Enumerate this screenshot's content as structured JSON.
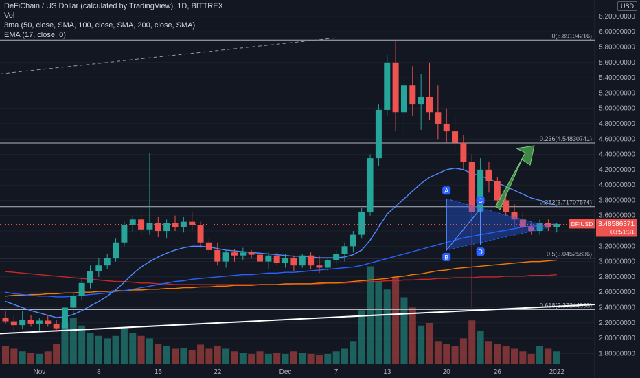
{
  "legend": {
    "title": "DeFiChain / US Dollar (calculated by TradingView), 1D, BITTREX",
    "vol": "Vol",
    "ma": "3ma (50, close, SMA, 100, close, SMA, 200, close, SMA)",
    "ema": "EMA (17, close, 0)"
  },
  "currency": "USD",
  "colors": {
    "bg": "#131722",
    "up": "#26a69a",
    "down": "#ef5350",
    "ema": "#2962ff",
    "ma100": "#f57c00",
    "ma200": "#c62828",
    "trend": "#ffffff",
    "pattern": "#2962ff",
    "arrow": "#4caf50",
    "price": "#ef5350"
  },
  "price_tag": {
    "symbol": "DFIUSD",
    "value": "3.48586371",
    "countdown": "03:51:31"
  },
  "fib_levels": [
    {
      "label": "0(5.89194216)",
      "value": 5.89194216
    },
    {
      "label": "0.236(4.54830741)",
      "value": 4.54830741
    },
    {
      "label": "0.382(3.71707574)",
      "value": 3.71707574
    },
    {
      "label": "0.5(3.04525836)",
      "value": 3.04525836
    },
    {
      "label": "0.618(2.37344098)",
      "value": 2.37344098
    }
  ],
  "pattern_points": [
    {
      "label": "A",
      "date": "2021-12-18",
      "value": 3.82
    },
    {
      "label": "B",
      "date": "2021-12-18",
      "value": 3.15
    },
    {
      "label": "C",
      "date": "2021-12-24",
      "value": 3.69
    },
    {
      "label": "D",
      "date": "2021-12-24",
      "value": 3.2
    }
  ],
  "chart_data": {
    "type": "candlestick",
    "y_axis": {
      "min": 1.66,
      "max": 6.28,
      "ticks": [
        "6.20000000",
        "6.00000000",
        "5.80000000",
        "5.60000000",
        "5.40000000",
        "5.20000000",
        "5.00000000",
        "4.80000000",
        "4.60000000",
        "4.40000000",
        "4.20000000",
        "4.00000000",
        "3.80000000",
        "3.60000000",
        "3.40000000",
        "3.20000000",
        "3.00000000",
        "2.80000000",
        "2.60000000",
        "2.40000000",
        "2.20000000",
        "2.00000000",
        "1.80000000"
      ]
    },
    "x_axis": {
      "labels": [
        "Nov",
        "8",
        "15",
        "22",
        "Dec",
        "7",
        "13",
        "20",
        "26",
        "2022"
      ]
    },
    "candles": [
      {
        "o": 2.27,
        "h": 2.35,
        "l": 2.18,
        "c": 2.22,
        "v": 0.35
      },
      {
        "o": 2.22,
        "h": 2.3,
        "l": 2.1,
        "c": 2.17,
        "v": 0.3
      },
      {
        "o": 2.17,
        "h": 2.35,
        "l": 2.12,
        "c": 2.24,
        "v": 0.25
      },
      {
        "o": 2.24,
        "h": 2.3,
        "l": 2.15,
        "c": 2.19,
        "v": 0.22
      },
      {
        "o": 2.19,
        "h": 2.26,
        "l": 2.1,
        "c": 2.23,
        "v": 0.2
      },
      {
        "o": 2.23,
        "h": 2.3,
        "l": 2.15,
        "c": 2.18,
        "v": 0.25
      },
      {
        "o": 2.18,
        "h": 2.24,
        "l": 2.08,
        "c": 2.13,
        "v": 0.4
      },
      {
        "o": 2.13,
        "h": 2.45,
        "l": 2.1,
        "c": 2.4,
        "v": 0.8
      },
      {
        "o": 2.4,
        "h": 2.6,
        "l": 2.3,
        "c": 2.55,
        "v": 0.9
      },
      {
        "o": 2.55,
        "h": 2.78,
        "l": 2.5,
        "c": 2.72,
        "v": 0.75
      },
      {
        "o": 2.72,
        "h": 2.95,
        "l": 2.65,
        "c": 2.88,
        "v": 0.6
      },
      {
        "o": 2.88,
        "h": 3.05,
        "l": 2.8,
        "c": 2.95,
        "v": 0.55
      },
      {
        "o": 2.95,
        "h": 3.1,
        "l": 2.9,
        "c": 3.05,
        "v": 0.5
      },
      {
        "o": 3.05,
        "h": 3.3,
        "l": 3.0,
        "c": 3.25,
        "v": 0.55
      },
      {
        "o": 3.25,
        "h": 3.52,
        "l": 3.2,
        "c": 3.48,
        "v": 0.7
      },
      {
        "o": 3.48,
        "h": 3.6,
        "l": 3.38,
        "c": 3.55,
        "v": 0.6
      },
      {
        "o": 3.55,
        "h": 3.62,
        "l": 3.35,
        "c": 3.42,
        "v": 0.55
      },
      {
        "o": 3.42,
        "h": 4.42,
        "l": 3.35,
        "c": 3.5,
        "v": 0.5
      },
      {
        "o": 3.5,
        "h": 3.58,
        "l": 3.32,
        "c": 3.4,
        "v": 0.4
      },
      {
        "o": 3.4,
        "h": 3.55,
        "l": 3.3,
        "c": 3.5,
        "v": 0.35
      },
      {
        "o": 3.5,
        "h": 3.6,
        "l": 3.4,
        "c": 3.45,
        "v": 0.3
      },
      {
        "o": 3.45,
        "h": 3.58,
        "l": 3.38,
        "c": 3.52,
        "v": 0.32
      },
      {
        "o": 3.52,
        "h": 3.65,
        "l": 3.42,
        "c": 3.48,
        "v": 0.28
      },
      {
        "o": 3.48,
        "h": 3.52,
        "l": 3.18,
        "c": 3.25,
        "v": 0.38
      },
      {
        "o": 3.25,
        "h": 3.3,
        "l": 3.1,
        "c": 3.15,
        "v": 0.3
      },
      {
        "o": 3.15,
        "h": 3.25,
        "l": 2.95,
        "c": 3.0,
        "v": 0.35
      },
      {
        "o": 3.0,
        "h": 3.15,
        "l": 2.92,
        "c": 3.12,
        "v": 0.3
      },
      {
        "o": 3.12,
        "h": 3.16,
        "l": 3.0,
        "c": 3.08,
        "v": 0.25
      },
      {
        "o": 3.08,
        "h": 3.18,
        "l": 3.02,
        "c": 3.12,
        "v": 0.22
      },
      {
        "o": 3.12,
        "h": 3.15,
        "l": 3.05,
        "c": 3.09,
        "v": 0.2
      },
      {
        "o": 3.09,
        "h": 3.15,
        "l": 2.95,
        "c": 3.0,
        "v": 0.25
      },
      {
        "o": 3.0,
        "h": 3.12,
        "l": 2.9,
        "c": 3.08,
        "v": 0.2
      },
      {
        "o": 3.08,
        "h": 3.12,
        "l": 2.95,
        "c": 2.98,
        "v": 0.22
      },
      {
        "o": 2.98,
        "h": 3.1,
        "l": 2.92,
        "c": 3.05,
        "v": 0.2
      },
      {
        "o": 3.05,
        "h": 3.08,
        "l": 2.88,
        "c": 2.95,
        "v": 0.25
      },
      {
        "o": 2.95,
        "h": 3.1,
        "l": 2.92,
        "c": 3.08,
        "v": 0.22
      },
      {
        "o": 3.08,
        "h": 3.12,
        "l": 2.9,
        "c": 2.95,
        "v": 0.2
      },
      {
        "o": 2.95,
        "h": 3.08,
        "l": 2.85,
        "c": 2.92,
        "v": 0.18
      },
      {
        "o": 2.92,
        "h": 3.05,
        "l": 2.88,
        "c": 3.02,
        "v": 0.2
      },
      {
        "o": 3.02,
        "h": 3.15,
        "l": 2.95,
        "c": 3.1,
        "v": 0.25
      },
      {
        "o": 3.1,
        "h": 3.25,
        "l": 3.0,
        "c": 3.2,
        "v": 0.3
      },
      {
        "o": 3.2,
        "h": 3.4,
        "l": 3.12,
        "c": 3.35,
        "v": 0.45
      },
      {
        "o": 3.35,
        "h": 3.7,
        "l": 3.3,
        "c": 3.65,
        "v": 1.05
      },
      {
        "o": 3.65,
        "h": 4.4,
        "l": 3.6,
        "c": 4.35,
        "v": 1.9
      },
      {
        "o": 4.35,
        "h": 5.05,
        "l": 4.25,
        "c": 4.98,
        "v": 1.6
      },
      {
        "o": 4.98,
        "h": 5.7,
        "l": 4.9,
        "c": 5.6,
        "v": 1.45
      },
      {
        "o": 5.6,
        "h": 5.9,
        "l": 4.7,
        "c": 4.95,
        "v": 1.7
      },
      {
        "o": 4.95,
        "h": 5.4,
        "l": 4.6,
        "c": 5.3,
        "v": 1.3
      },
      {
        "o": 5.3,
        "h": 5.55,
        "l": 4.9,
        "c": 5.05,
        "v": 1.1
      },
      {
        "o": 5.05,
        "h": 5.45,
        "l": 4.72,
        "c": 5.15,
        "v": 0.75
      },
      {
        "o": 5.15,
        "h": 5.6,
        "l": 4.85,
        "c": 4.95,
        "v": 0.8
      },
      {
        "o": 4.95,
        "h": 5.3,
        "l": 4.6,
        "c": 4.8,
        "v": 0.45
      },
      {
        "o": 4.8,
        "h": 5.0,
        "l": 4.55,
        "c": 4.7,
        "v": 0.4
      },
      {
        "o": 4.7,
        "h": 4.9,
        "l": 4.45,
        "c": 4.55,
        "v": 0.35
      },
      {
        "o": 4.55,
        "h": 4.65,
        "l": 4.2,
        "c": 4.3,
        "v": 0.5
      },
      {
        "o": 4.3,
        "h": 4.4,
        "l": 2.4,
        "c": 3.65,
        "v": 0.85
      },
      {
        "o": 3.65,
        "h": 4.35,
        "l": 3.6,
        "c": 4.2,
        "v": 0.65
      },
      {
        "o": 4.2,
        "h": 4.3,
        "l": 3.9,
        "c": 4.05,
        "v": 0.45
      },
      {
        "o": 4.05,
        "h": 4.1,
        "l": 3.7,
        "c": 3.8,
        "v": 0.4
      },
      {
        "o": 3.8,
        "h": 3.9,
        "l": 3.6,
        "c": 3.65,
        "v": 0.35
      },
      {
        "o": 3.65,
        "h": 3.75,
        "l": 3.45,
        "c": 3.55,
        "v": 0.3
      },
      {
        "o": 3.55,
        "h": 3.65,
        "l": 3.35,
        "c": 3.45,
        "v": 0.25
      },
      {
        "o": 3.45,
        "h": 3.5,
        "l": 3.35,
        "c": 3.4,
        "v": 0.2
      },
      {
        "o": 3.4,
        "h": 3.55,
        "l": 3.35,
        "c": 3.5,
        "v": 0.35
      },
      {
        "o": 3.5,
        "h": 3.55,
        "l": 3.4,
        "c": 3.45,
        "v": 0.3
      },
      {
        "o": 3.45,
        "h": 3.5,
        "l": 3.38,
        "c": 3.49,
        "v": 0.25
      }
    ],
    "ema17": [
      2.48,
      2.44,
      2.4,
      2.36,
      2.33,
      2.3,
      2.27,
      2.28,
      2.31,
      2.36,
      2.42,
      2.48,
      2.55,
      2.63,
      2.73,
      2.84,
      2.93,
      3.0,
      3.06,
      3.11,
      3.15,
      3.18,
      3.2,
      3.2,
      3.19,
      3.17,
      3.15,
      3.14,
      3.13,
      3.12,
      3.11,
      3.1,
      3.09,
      3.08,
      3.07,
      3.07,
      3.06,
      3.05,
      3.05,
      3.05,
      3.06,
      3.09,
      3.15,
      3.28,
      3.45,
      3.62,
      3.72,
      3.82,
      3.92,
      4.02,
      4.1,
      4.15,
      4.2,
      4.22,
      4.2,
      4.15,
      4.12,
      4.08,
      4.03,
      3.98,
      3.93,
      3.88,
      3.83,
      3.8,
      3.76,
      3.73
    ],
    "sma50": [
      2.6,
      2.58,
      2.57,
      2.56,
      2.55,
      2.55,
      2.54,
      2.54,
      2.55,
      2.56,
      2.57,
      2.58,
      2.59,
      2.61,
      2.62,
      2.64,
      2.66,
      2.68,
      2.7,
      2.72,
      2.74,
      2.75,
      2.77,
      2.78,
      2.79,
      2.8,
      2.81,
      2.82,
      2.83,
      2.83,
      2.84,
      2.85,
      2.85,
      2.86,
      2.86,
      2.87,
      2.88,
      2.89,
      2.9,
      2.91,
      2.92,
      2.93,
      2.95,
      2.98,
      3.01,
      3.04,
      3.07,
      3.1,
      3.13,
      3.16,
      3.19,
      3.22,
      3.25,
      3.28,
      3.31,
      3.33,
      3.35,
      3.37,
      3.39,
      3.41,
      3.43,
      3.45,
      3.46,
      3.47,
      3.48,
      3.49
    ],
    "sma100": [
      2.55,
      2.56,
      2.56,
      2.57,
      2.57,
      2.58,
      2.58,
      2.59,
      2.59,
      2.6,
      2.6,
      2.61,
      2.61,
      2.62,
      2.62,
      2.63,
      2.63,
      2.64,
      2.64,
      2.65,
      2.65,
      2.66,
      2.66,
      2.67,
      2.67,
      2.68,
      2.68,
      2.69,
      2.69,
      2.69,
      2.7,
      2.7,
      2.7,
      2.71,
      2.71,
      2.71,
      2.71,
      2.72,
      2.72,
      2.72,
      2.73,
      2.74,
      2.75,
      2.76,
      2.77,
      2.78,
      2.8,
      2.81,
      2.83,
      2.84,
      2.86,
      2.88,
      2.89,
      2.91,
      2.92,
      2.93,
      2.94,
      2.95,
      2.96,
      2.97,
      2.98,
      2.99,
      3.0,
      3.0,
      3.01,
      3.02
    ],
    "sma200": [
      2.87,
      2.86,
      2.85,
      2.84,
      2.83,
      2.82,
      2.81,
      2.8,
      2.79,
      2.78,
      2.77,
      2.76,
      2.75,
      2.74,
      2.74,
      2.73,
      2.72,
      2.72,
      2.71,
      2.71,
      2.7,
      2.7,
      2.7,
      2.7,
      2.7,
      2.7,
      2.7,
      2.7,
      2.7,
      2.7,
      2.7,
      2.7,
      2.7,
      2.7,
      2.71,
      2.71,
      2.71,
      2.71,
      2.72,
      2.72,
      2.72,
      2.73,
      2.73,
      2.74,
      2.74,
      2.75,
      2.75,
      2.76,
      2.76,
      2.77,
      2.77,
      2.78,
      2.78,
      2.79,
      2.79,
      2.79,
      2.8,
      2.8,
      2.8,
      2.81,
      2.81,
      2.81,
      2.82,
      2.82,
      2.82,
      2.83
    ]
  }
}
